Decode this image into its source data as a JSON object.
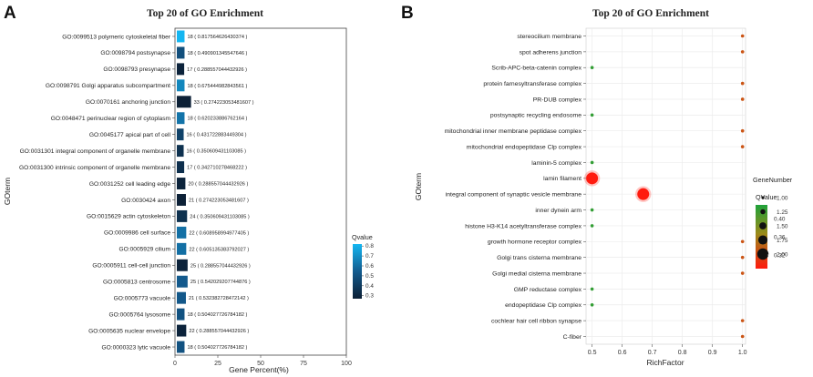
{
  "chart_data": [
    {
      "type": "bar",
      "panel": "A",
      "title": "Top 20 of GO Enrichment",
      "xlabel": "Gene Percent(%)",
      "ylabel": "GOterm",
      "xlim": [
        0,
        100
      ],
      "xticks": [
        "0",
        "25",
        "50",
        "75",
        "100"
      ],
      "legend": {
        "title": "Qvalue",
        "min": 0.27,
        "max": 0.82,
        "ticks": [
          "0.8",
          "0.7",
          "0.6",
          "0.5",
          "0.4",
          "0.3"
        ]
      },
      "bars": [
        {
          "term": "GO:0099513 polymeric cytoskeletal fiber",
          "count": 18,
          "qvalue": "0.817564626430374",
          "percent": 4.5
        },
        {
          "term": "GO:0098794 postsynapse",
          "count": 18,
          "qvalue": "0.490901345547646",
          "percent": 4.5
        },
        {
          "term": "GO:0098793 presynapse",
          "count": 17,
          "qvalue": "0.288557044432926",
          "percent": 4.3
        },
        {
          "term": "GO:0098791 Golgi apparatus subcompartment",
          "count": 18,
          "qvalue": "0.675444982843561",
          "percent": 4.5
        },
        {
          "term": "GO:0070161 anchoring junction",
          "count": 33,
          "qvalue": "0.274223053481607",
          "percent": 8.3
        },
        {
          "term": "GO:0048471 perinuclear region of cytoplasm",
          "count": 18,
          "qvalue": "0.620233886762164",
          "percent": 4.5
        },
        {
          "term": "GO:0045177 apical part of cell",
          "count": 16,
          "qvalue": "0.431722883449304",
          "percent": 4.0
        },
        {
          "term": "GO:0031301 integral component of organelle membrane",
          "count": 16,
          "qvalue": "0.350609431103085",
          "percent": 4.0
        },
        {
          "term": "GO:0031300 intrinsic component of organelle membrane",
          "count": 17,
          "qvalue": "0.342710278468222",
          "percent": 4.3
        },
        {
          "term": "GO:0031252 cell leading edge",
          "count": 20,
          "qvalue": "0.288557044432926",
          "percent": 5.0
        },
        {
          "term": "GO:0030424 axon",
          "count": 21,
          "qvalue": "0.274223053481607",
          "percent": 5.3
        },
        {
          "term": "GO:0015629 actin cytoskeleton",
          "count": 24,
          "qvalue": "0.350609431103085",
          "percent": 6.0
        },
        {
          "term": "GO:0009986 cell surface",
          "count": 22,
          "qvalue": "0.608958994977405",
          "percent": 5.5
        },
        {
          "term": "GO:0005929 cilium",
          "count": 22,
          "qvalue": "0.605135383792027",
          "percent": 5.5
        },
        {
          "term": "GO:0005911 cell-cell junction",
          "count": 25,
          "qvalue": "0.288557044432926",
          "percent": 6.3
        },
        {
          "term": "GO:0005813 centrosome",
          "count": 25,
          "qvalue": "0.542029207744876",
          "percent": 6.3
        },
        {
          "term": "GO:0005773 vacuole",
          "count": 21,
          "qvalue": "0.532382728472142",
          "percent": 5.3
        },
        {
          "term": "GO:0005764 lysosome",
          "count": 18,
          "qvalue": "0.504027726784182",
          "percent": 4.5
        },
        {
          "term": "GO:0005635 nuclear envelope",
          "count": 22,
          "qvalue": "0.288557044432926",
          "percent": 5.5
        },
        {
          "term": "GO:0000323 lytic vacuole",
          "count": 18,
          "qvalue": "0.504027726784182",
          "percent": 4.5
        }
      ]
    },
    {
      "type": "scatter",
      "panel": "B",
      "title": "Top 20 of GO Enrichment",
      "xlabel": "RichFactor",
      "ylabel": "GOterm",
      "xlim": [
        0.48,
        1.01
      ],
      "xticks": [
        "0.5",
        "0.6",
        "0.7",
        "0.8",
        "0.9",
        "1.0"
      ],
      "size_legend": {
        "title": "GeneNumber",
        "values": [
          "1.00",
          "1.25",
          "1.50",
          "1.75",
          "2.00"
        ]
      },
      "color_legend": {
        "title": "QValue",
        "min": 0.29,
        "max": 0.43,
        "ticks": [
          "0.40",
          "0.36",
          "0.32"
        ]
      },
      "points": [
        {
          "term": "stereocilium membrane",
          "rich_factor": 1.0,
          "gene_number": 1,
          "qvalue": 0.33
        },
        {
          "term": "spot adherens junction",
          "rich_factor": 1.0,
          "gene_number": 1,
          "qvalue": 0.33
        },
        {
          "term": "Scrib-APC-beta-catenin complex",
          "rich_factor": 0.5,
          "gene_number": 1,
          "qvalue": 0.42
        },
        {
          "term": "protein farnesyltransferase complex",
          "rich_factor": 1.0,
          "gene_number": 1,
          "qvalue": 0.33
        },
        {
          "term": "PR-DUB complex",
          "rich_factor": 1.0,
          "gene_number": 1,
          "qvalue": 0.33
        },
        {
          "term": "postsynaptic recycling endosome",
          "rich_factor": 0.5,
          "gene_number": 1,
          "qvalue": 0.42
        },
        {
          "term": "mitochondrial inner membrane peptidase complex",
          "rich_factor": 1.0,
          "gene_number": 1,
          "qvalue": 0.33
        },
        {
          "term": "mitochondrial endopeptidase Clp complex",
          "rich_factor": 1.0,
          "gene_number": 1,
          "qvalue": 0.33
        },
        {
          "term": "laminin-5 complex",
          "rich_factor": 0.5,
          "gene_number": 1,
          "qvalue": 0.42
        },
        {
          "term": "lamin filament",
          "rich_factor": 0.5,
          "gene_number": 2,
          "qvalue": 0.29
        },
        {
          "term": "integral component of synaptic vesicle membrane",
          "rich_factor": 0.67,
          "gene_number": 2,
          "qvalue": 0.29
        },
        {
          "term": "inner dynein arm",
          "rich_factor": 0.5,
          "gene_number": 1,
          "qvalue": 0.42
        },
        {
          "term": "histone H3-K14 acetyltransferase complex",
          "rich_factor": 0.5,
          "gene_number": 1,
          "qvalue": 0.42
        },
        {
          "term": "growth hormone receptor complex",
          "rich_factor": 1.0,
          "gene_number": 1,
          "qvalue": 0.33
        },
        {
          "term": "Golgi trans cisterna membrane",
          "rich_factor": 1.0,
          "gene_number": 1,
          "qvalue": 0.33
        },
        {
          "term": "Golgi medial cisterna membrane",
          "rich_factor": 1.0,
          "gene_number": 1,
          "qvalue": 0.33
        },
        {
          "term": "GMP reductase complex",
          "rich_factor": 0.5,
          "gene_number": 1,
          "qvalue": 0.42
        },
        {
          "term": "endopeptidase Clp complex",
          "rich_factor": 0.5,
          "gene_number": 1,
          "qvalue": 0.42
        },
        {
          "term": "cochlear hair cell ribbon synapse",
          "rich_factor": 1.0,
          "gene_number": 1,
          "qvalue": 0.33
        },
        {
          "term": "C-fiber",
          "rich_factor": 1.0,
          "gene_number": 1,
          "qvalue": 0.33
        }
      ]
    }
  ]
}
